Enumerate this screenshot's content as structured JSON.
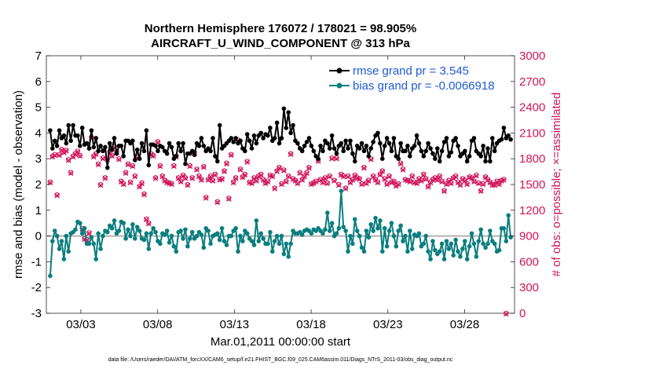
{
  "chart_data": {
    "type": "line",
    "title": "Northern Hemisphere 176072 / 178021 = 98.905%",
    "subtitle": "AIRCRAFT_U_WIND_COMPONENT @ 313 hPa",
    "ylabel": "rmse and bias (model - observation)",
    "y2label": "# of obs: o=possible; ×=assimilated",
    "xlabel": "Mar.01,2011 00:00:00 start",
    "footer": "data file: /Users/raeder/DAI/ATM_forcXX/CAM6_setup/f.e21.FHIST_BGC.f09_025.CAM6assim.011/Diags_NTrS_2011-03/obs_diag_output.nc",
    "ylim": [
      -3,
      7
    ],
    "y2lim": [
      0,
      3000
    ],
    "xlim": [
      0.75,
      31.25
    ],
    "yticks": [
      "-3",
      "-2",
      "-1",
      "0",
      "1",
      "2",
      "3",
      "4",
      "5",
      "6",
      "7"
    ],
    "y2ticks": [
      "0",
      "300",
      "600",
      "900",
      "1200",
      "1500",
      "1800",
      "2100",
      "2400",
      "2700",
      "3000"
    ],
    "xticks": [
      {
        "day": 3,
        "label": "03/03"
      },
      {
        "day": 8,
        "label": "03/08"
      },
      {
        "day": 13,
        "label": "03/13"
      },
      {
        "day": 18,
        "label": "03/18"
      },
      {
        "day": 23,
        "label": "03/23"
      },
      {
        "day": 28,
        "label": "03/28"
      }
    ],
    "legend": [
      {
        "name": "rmse grand pr = 3.545",
        "color": "#000000"
      },
      {
        "name": "bias grand pr = -0.0066918",
        "color": "#0a7e7e"
      }
    ],
    "colors": {
      "rmse": "#000000",
      "bias": "#0a7e7e",
      "obs": "#d1145a",
      "zero": "#b3b3b3"
    },
    "series": [
      {
        "name": "rmse",
        "values": [
          4.1,
          3.4,
          3.7,
          3.5,
          4.1,
          3.8,
          3.9,
          3.6,
          4.3,
          3.7,
          4.3,
          3.9,
          3.9,
          3.5,
          4.2,
          3.55,
          3.6,
          3.4,
          4.1,
          3.45,
          3.8,
          3.3,
          3.5,
          3.3,
          3.45,
          2.65,
          3.6,
          3.35,
          3.8,
          3.2,
          3.5,
          3.5,
          3.1,
          3.7,
          3.7,
          3.6,
          3.7,
          2.95,
          3.35,
          3.0,
          3.6,
          3.3,
          4.1,
          2.75,
          3.55,
          3.55,
          3.5,
          3.3,
          3.5,
          3.45,
          3.3,
          3.2,
          3.6,
          3.45,
          3.0,
          3.1,
          3.6,
          3.3,
          3.6,
          2.8,
          3.2,
          3.2,
          3.3,
          3.15,
          3.6,
          3.5,
          3.8,
          3.5,
          3.3,
          3.4,
          3.3,
          3.8,
          3.1,
          2.9,
          4.3,
          3.4,
          3.5,
          3.6,
          3.7,
          3.8,
          3.65,
          3.8,
          3.6,
          3.7,
          3.4,
          3.3,
          3.95,
          3.7,
          3.4,
          3.9,
          3.6,
          3.9,
          4.0,
          3.8,
          3.95,
          3.9,
          4.2,
          3.7,
          3.8,
          4.4,
          3.6,
          3.8,
          4.95,
          4.2,
          4.8,
          4.0,
          4.3,
          3.7,
          3.6,
          3.4,
          3.3,
          3.5,
          3.65,
          3.8,
          3.5,
          3.3,
          3.1,
          3.0,
          3.5,
          3.3,
          3.7,
          3.6,
          3.4,
          3.9,
          3.4,
          3.2,
          3.5,
          3.6,
          3.3,
          3.7,
          3.4,
          3.7,
          3.2,
          2.9,
          3.5,
          3.4,
          3.6,
          3.3,
          3.5,
          3.1,
          3.4,
          3.65,
          3.9,
          4.0,
          3.6,
          3.0,
          3.5,
          3.8,
          3.6,
          3.3,
          3.8,
          3.1,
          3.0,
          3.6,
          3.3,
          3.3,
          3.5,
          3.1,
          3.4,
          3.5,
          3.9,
          3.6,
          3.3,
          3.1,
          3.3,
          3.6,
          3.4,
          3.2,
          3.0,
          3.4,
          2.9,
          3.3,
          3.65,
          3.8,
          3.1,
          3.25,
          3.7,
          3.8,
          3.5,
          3.1,
          3.2,
          3.3,
          2.9,
          3.1,
          3.7,
          3.8,
          3.3,
          3.2,
          3.1,
          3.5,
          2.9,
          3.4,
          2.9,
          3.8,
          3.3,
          3.6,
          3.7,
          3.75,
          4.2,
          3.8,
          3.9,
          3.75
        ]
      },
      {
        "name": "bias",
        "values": [
          -1.55,
          -0.2,
          0.2,
          0.0,
          -0.5,
          -0.2,
          -0.9,
          0.0,
          -0.6,
          0.1,
          0.15,
          0.25,
          0.55,
          0.5,
          0.1,
          0.3,
          -0.3,
          -0.3,
          -0.05,
          -0.3,
          -0.9,
          0.1,
          -0.5,
          0.0,
          0.2,
          0.15,
          0.4,
          0.3,
          0.6,
          0.1,
          0.2,
          0.55,
          0.5,
          -0.1,
          0.25,
          0.0,
          0.45,
          -0.1,
          0.35,
          0.2,
          -0.1,
          -0.15,
          0.1,
          -0.5,
          0.1,
          0.3,
          0.15,
          -0.2,
          -0.3,
          0.1,
          0.05,
          0.2,
          -0.25,
          0.0,
          -0.4,
          -0.6,
          0.15,
          0.2,
          -0.1,
          0.25,
          -0.4,
          -0.1,
          0.15,
          -0.1,
          0.0,
          0.15,
          0.05,
          -0.45,
          0.3,
          0.2,
          -0.3,
          0.0,
          0.05,
          0.1,
          -0.15,
          0.3,
          -0.2,
          -0.35,
          0.0,
          0.0,
          0.2,
          0.3,
          -0.6,
          0.0,
          -0.2,
          0.2,
          0.1,
          -0.1,
          -0.2,
          -0.35,
          0.6,
          -0.2,
          0.1,
          -0.1,
          -0.3,
          -0.3,
          0.15,
          -0.6,
          -0.2,
          0.0,
          -0.3,
          0.0,
          -0.7,
          -0.3,
          -0.8,
          -0.3,
          0.2,
          0.1,
          0.1,
          0.15,
          0.05,
          0.2,
          0.25,
          0.2,
          0.1,
          0.25,
          0.2,
          0.3,
          0.2,
          0.1,
          0.25,
          0.9,
          0.2,
          0.5,
          0.0,
          0.1,
          0.3,
          1.75,
          0.35,
          0.2,
          -0.6,
          0.0,
          -0.3,
          0.65,
          0.2,
          0.0,
          -0.45,
          -0.6,
          0.2,
          -0.05,
          0.45,
          0.2,
          0.7,
          0.3,
          0.6,
          -0.6,
          0.3,
          -0.4,
          0.2,
          0.5,
          0.0,
          -0.4,
          0.2,
          0.4,
          -0.2,
          0.0,
          -0.6,
          0.2,
          -0.5,
          0.05,
          0.0,
          0.1,
          -0.4,
          -0.3,
          0.0,
          -0.6,
          -0.9,
          -0.2,
          -0.55,
          -0.7,
          -0.6,
          -0.3,
          -0.9,
          -0.2,
          -0.5,
          -0.3,
          -0.75,
          -0.15,
          -0.6,
          -0.8,
          -0.5,
          -0.2,
          -0.9,
          -0.4,
          0.1,
          -0.3,
          -0.8,
          -0.2,
          0.25,
          -0.3,
          -0.45,
          -0.3,
          0.2,
          -0.2,
          -0.3,
          -0.6,
          -0.55,
          0.3,
          0.3,
          -0.2,
          0.8,
          -0.05
        ]
      },
      {
        "name": "obs_possible",
        "values": [
          1530,
          1830,
          1850,
          1380,
          1850,
          1910,
          1880,
          1900,
          1790,
          1640,
          1830,
          1860,
          1890,
          1840,
          990,
          870,
          860,
          940,
          2050,
          1830,
          1860,
          1740,
          1500,
          1810,
          1580,
          1800,
          1880,
          1840,
          1940,
          1880,
          1800,
          1540,
          1510,
          1640,
          1740,
          1530,
          1720,
          1600,
          1820,
          1480,
          1520,
          1390,
          1100,
          1050,
          1860,
          1840,
          1580,
          2000,
          1720,
          1600,
          1550,
          1530,
          1520,
          1510,
          1720,
          1830,
          1580,
          1540,
          1610,
          1580,
          1500,
          1720,
          1580,
          1870,
          1680,
          1600,
          1560,
          1710,
          1350,
          1560,
          1600,
          1550,
          1620,
          1300,
          1560,
          1570,
          1660,
          1750,
          1340,
          1850,
          1530,
          1580,
          2020,
          1680,
          1590,
          1620,
          1770,
          1530,
          1520,
          1580,
          1550,
          1600,
          1620,
          1560,
          1520,
          1540,
          1610,
          1600,
          1460,
          1660,
          1700,
          1510,
          1670,
          1540,
          1600,
          1860,
          1570,
          1550,
          1520,
          1640,
          1560,
          1600,
          1640,
          1700,
          1510,
          1520,
          1540,
          1780,
          1560,
          1530,
          1580,
          1520,
          1600,
          1810,
          1550,
          1810,
          1500,
          1620,
          1600,
          1460,
          1600,
          1530,
          1560,
          1610,
          1580,
          1570,
          1510,
          1700,
          1520,
          1550,
          1800,
          1600,
          1560,
          1530,
          1620,
          1660,
          1570,
          1510,
          1600,
          1530,
          1540,
          1490,
          1510,
          1750,
          1680,
          1560,
          1550,
          1540,
          1600,
          1530,
          1520,
          1570,
          1550,
          1620,
          1570,
          1480,
          1530,
          1560,
          1580,
          1560,
          1600,
          1540,
          1430,
          1510,
          1550,
          1520,
          1580,
          1600,
          1530,
          1500,
          1570,
          1550,
          1510,
          1590,
          1580,
          1540,
          1610,
          1520,
          1430,
          1510,
          1590,
          1560,
          1530,
          1500,
          1500,
          1540,
          1510,
          1550,
          1560,
          0
        ]
      }
    ]
  }
}
